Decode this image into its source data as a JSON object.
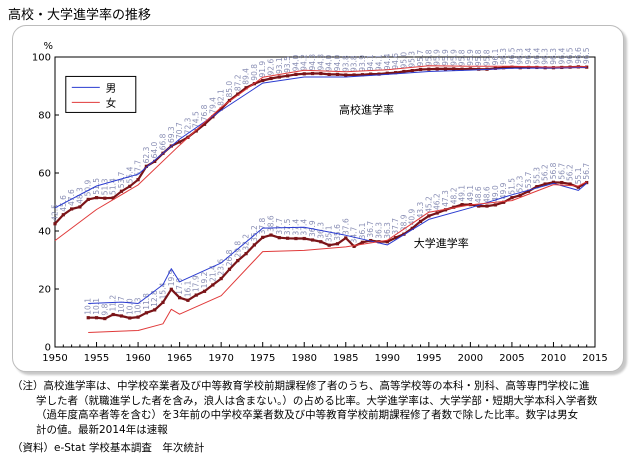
{
  "page_title": "高校・大学進学率の推移",
  "note_lines": [
    "（注）高校進学率は、中学校卒業者及び中等教育学校前期課程修了者のうち、高等学校等の本科・別科、高等専門学校に進",
    "学した者（就職進学した者を含み，浪人は含まない。）の占める比率。大学進学率は、大学学部・短期大学本科入学者数",
    "（過年度高卒者等を含む）を3年前の中学校卒業者数及び中等教育学校前期課程修了者数で除した比率。数字は男女",
    "計の値。最新2014年は速報"
  ],
  "source": "（資料）e-Stat 学校基本調査　年次統計",
  "colors": {
    "total": "#7a1418",
    "male": "#2a3bd0",
    "female": "#e03a3a",
    "total_label": "#8a8fb5"
  },
  "chart_data": {
    "type": "line",
    "title": "",
    "ylabel": "%",
    "xlabel": "",
    "xlim": [
      1950,
      2015
    ],
    "ylim": [
      0,
      100
    ],
    "xticks": [
      "1950",
      "1955",
      "1960",
      "1965",
      "1970",
      "1975",
      "1980",
      "1985",
      "1990",
      "1995",
      "2000",
      "2005",
      "2010",
      "2015"
    ],
    "yticks": [
      "0",
      "20",
      "40",
      "60",
      "80",
      "100"
    ],
    "grid": false,
    "legend_position": "top-left",
    "legend": [
      "男",
      "女"
    ],
    "annotations": [
      "高校進学率",
      "大学進学率"
    ],
    "series": [
      {
        "group": "高校進学率",
        "kind": "total",
        "labeled": true,
        "x": [
          1950,
          1951,
          1952,
          1953,
          1954,
          1955,
          1956,
          1957,
          1958,
          1959,
          1960,
          1961,
          1962,
          1963,
          1964,
          1965,
          1966,
          1967,
          1968,
          1969,
          1970,
          1971,
          1972,
          1973,
          1974,
          1975,
          1976,
          1977,
          1978,
          1979,
          1980,
          1981,
          1982,
          1983,
          1984,
          1985,
          1986,
          1987,
          1988,
          1989,
          1990,
          1991,
          1992,
          1993,
          1994,
          1995,
          1996,
          1997,
          1998,
          1999,
          2000,
          2001,
          2002,
          2003,
          2004,
          2005,
          2006,
          2007,
          2008,
          2009,
          2010,
          2011,
          2012,
          2013,
          2014
        ],
        "values": [
          42.5,
          45.6,
          47.6,
          48.3,
          50.9,
          51.5,
          51.3,
          51.4,
          53.7,
          55.4,
          57.7,
          62.3,
          64.0,
          66.8,
          69.3,
          70.7,
          72.3,
          74.5,
          76.8,
          79.4,
          82.1,
          85.0,
          87.2,
          89.4,
          90.8,
          91.9,
          92.6,
          93.1,
          93.5,
          94.0,
          94.2,
          94.3,
          94.3,
          94.0,
          94.0,
          93.8,
          93.8,
          93.9,
          94.1,
          94.1,
          94.4,
          94.6,
          95.0,
          95.3,
          95.7,
          95.8,
          95.9,
          95.9,
          95.9,
          95.8,
          95.9,
          95.8,
          95.8,
          96.1,
          96.3,
          96.5,
          96.3,
          96.4,
          96.4,
          96.3,
          96.3,
          96.4,
          96.5,
          96.6,
          96.5
        ]
      },
      {
        "group": "高校進学率",
        "kind": "male",
        "labeled": false,
        "x": [
          1950,
          1955,
          1960,
          1965,
          1970,
          1975,
          1980,
          1985,
          1990,
          1995,
          2000,
          2005,
          2010,
          2014
        ],
        "values": [
          48.0,
          55.5,
          59.6,
          71.7,
          81.6,
          91.0,
          93.1,
          93.1,
          94.0,
          95.0,
          95.5,
          96.1,
          96.2,
          96.4
        ]
      },
      {
        "group": "高校進学率",
        "kind": "female",
        "labeled": false,
        "x": [
          1950,
          1955,
          1960,
          1965,
          1970,
          1975,
          1980,
          1985,
          1990,
          1995,
          2000,
          2005,
          2010,
          2014
        ],
        "values": [
          36.7,
          47.4,
          55.9,
          69.6,
          82.7,
          93.0,
          95.4,
          94.9,
          95.6,
          97.0,
          96.8,
          96.8,
          96.5,
          96.7
        ]
      },
      {
        "group": "大学進学率",
        "kind": "total",
        "labeled": true,
        "x": [
          1954,
          1955,
          1956,
          1957,
          1958,
          1959,
          1960,
          1961,
          1962,
          1963,
          1964,
          1965,
          1966,
          1967,
          1968,
          1969,
          1970,
          1971,
          1972,
          1973,
          1974,
          1975,
          1976,
          1977,
          1978,
          1979,
          1980,
          1981,
          1982,
          1983,
          1984,
          1985,
          1986,
          1987,
          1988,
          1989,
          1990,
          1991,
          1992,
          1993,
          1994,
          1995,
          1996,
          1997,
          1998,
          1999,
          2000,
          2001,
          2002,
          2003,
          2004,
          2005,
          2006,
          2007,
          2008,
          2009,
          2010,
          2011,
          2012,
          2013,
          2014
        ],
        "values": [
          10.1,
          10.1,
          9.8,
          11.2,
          10.7,
          10.0,
          10.3,
          11.8,
          12.8,
          15.4,
          19.9,
          17.0,
          16.1,
          17.9,
          19.2,
          21.4,
          23.6,
          26.8,
          29.8,
          32.2,
          35.2,
          37.8,
          38.6,
          37.7,
          37.5,
          37.4,
          37.4,
          36.9,
          36.3,
          35.1,
          35.6,
          37.6,
          34.7,
          36.1,
          36.7,
          36.3,
          36.3,
          37.7,
          38.9,
          40.9,
          43.3,
          45.2,
          46.2,
          47.3,
          48.2,
          49.1,
          49.1,
          48.6,
          48.6,
          49.0,
          49.9,
          51.5,
          52.3,
          53.7,
          55.3,
          56.2,
          56.8,
          56.7,
          56.2,
          55.1,
          56.7
        ]
      },
      {
        "group": "大学進学率",
        "kind": "male",
        "labeled": false,
        "x": [
          1954,
          1958,
          1960,
          1963,
          1964,
          1965,
          1970,
          1975,
          1980,
          1985,
          1990,
          1995,
          2000,
          2005,
          2010,
          2013,
          2014
        ],
        "values": [
          15.0,
          15.5,
          15.0,
          21.5,
          27.0,
          22.5,
          29.0,
          41.0,
          41.3,
          38.5,
          35.2,
          44.0,
          48.0,
          52.5,
          56.4,
          54.0,
          56.5
        ]
      },
      {
        "group": "大学進学率",
        "kind": "female",
        "labeled": false,
        "x": [
          1954,
          1958,
          1960,
          1963,
          1964,
          1965,
          1970,
          1975,
          1980,
          1985,
          1990,
          1995,
          2000,
          2005,
          2010,
          2013,
          2014
        ],
        "values": [
          5.0,
          5.5,
          5.7,
          8.0,
          13.0,
          11.3,
          17.7,
          32.9,
          33.3,
          34.5,
          36.8,
          46.5,
          49.0,
          50.5,
          56.0,
          55.5,
          57.0
        ]
      }
    ]
  }
}
